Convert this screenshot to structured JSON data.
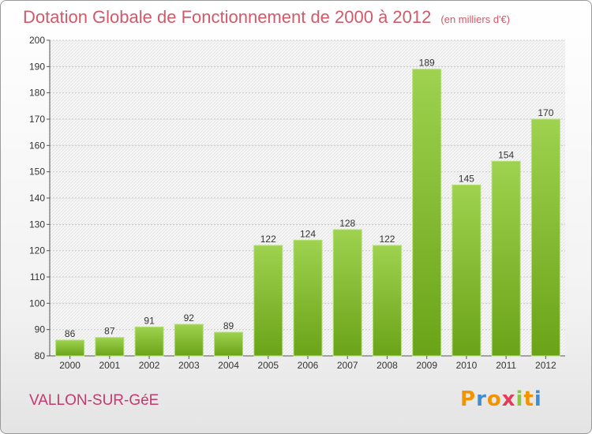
{
  "header": {
    "title": "Dotation Globale de Fonctionnement de 2000 à 2012",
    "unit": "(en milliers d'€)"
  },
  "chart_data": {
    "type": "bar",
    "categories": [
      "2000",
      "2001",
      "2002",
      "2003",
      "2004",
      "2005",
      "2006",
      "2007",
      "2008",
      "2009",
      "2010",
      "2011",
      "2012"
    ],
    "values": [
      86,
      87,
      91,
      92,
      89,
      122,
      124,
      128,
      122,
      189,
      145,
      154,
      170
    ],
    "ylim": [
      80,
      200
    ],
    "yticks": [
      80,
      90,
      100,
      110,
      120,
      130,
      140,
      150,
      160,
      170,
      180,
      190,
      200
    ],
    "grid": true,
    "bar_color": "#8cc63f"
  },
  "footer": {
    "place": "VALLON-SUR-GéE",
    "logo_letters": [
      {
        "char": "P",
        "color": "#f29400"
      },
      {
        "char": "r",
        "color": "#3d8fd1"
      },
      {
        "char": "o",
        "color": "#f29400"
      },
      {
        "char": "x",
        "color": "#e63c5a"
      },
      {
        "char": "i",
        "color": "#8cc63f"
      },
      {
        "char": "t",
        "color": "#f29400"
      },
      {
        "char": "i",
        "color": "#3d8fd1"
      }
    ]
  }
}
